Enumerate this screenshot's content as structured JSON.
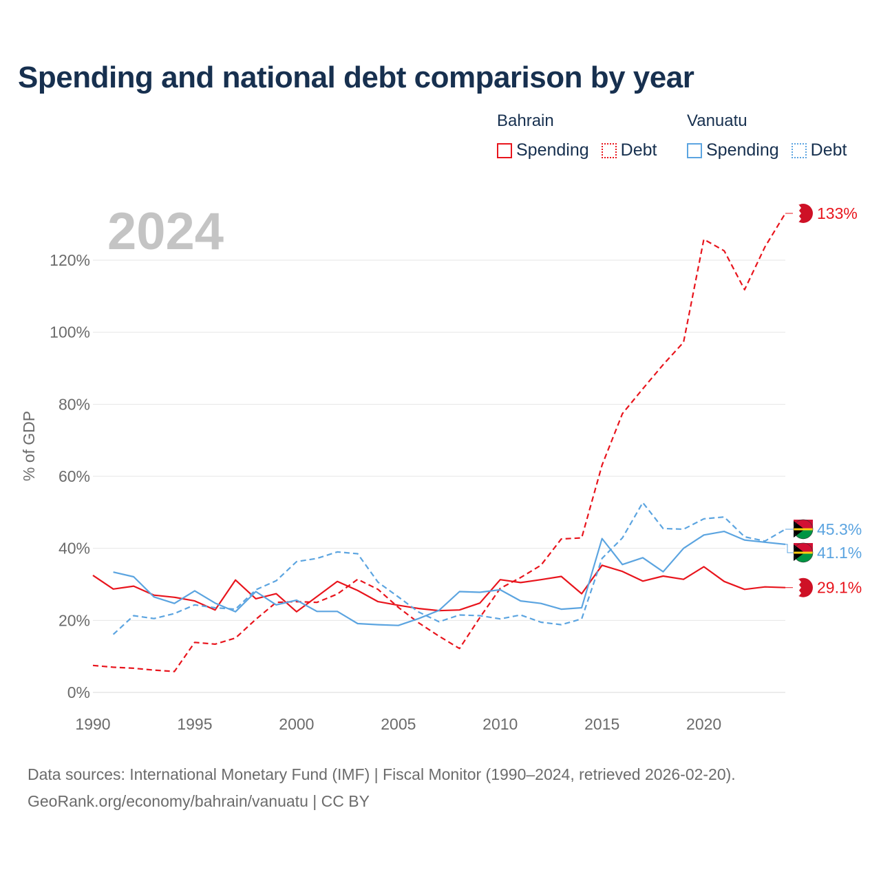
{
  "title": "Spending and national debt comparison by year",
  "year_label": "2024",
  "legend": [
    {
      "country": "Bahrain",
      "color": "#e8141c",
      "items": [
        "Spending",
        "Debt"
      ]
    },
    {
      "country": "Vanuatu",
      "color": "#5ba4e0",
      "items": [
        "Spending",
        "Debt"
      ]
    }
  ],
  "footer": {
    "source": "Data sources: International Monetary Fund (IMF) | Fiscal Monitor (1990–2024, retrieved 2026-02-20).",
    "url": "GeoRank.org/economy/bahrain/vanuatu | CC BY"
  },
  "chart_data": {
    "type": "line",
    "ylabel": "% of GDP",
    "xlim": [
      1990,
      2024
    ],
    "ylim": [
      0,
      133
    ],
    "yticks": [
      0,
      20,
      40,
      60,
      80,
      100,
      120
    ],
    "ytick_labels": [
      "0%",
      "20%",
      "40%",
      "60%",
      "80%",
      "100%",
      "120%"
    ],
    "xticks": [
      1990,
      1995,
      2000,
      2005,
      2010,
      2015,
      2020
    ],
    "xtick_labels": [
      "1990",
      "1995",
      "2000",
      "2005",
      "2010",
      "2015",
      "2020"
    ],
    "series": [
      {
        "name": "Bahrain Spending",
        "color": "#e8141c",
        "dash": false,
        "end_label": "29.1%",
        "x": [
          1990,
          1991,
          1992,
          1993,
          1994,
          1995,
          1996,
          1997,
          1998,
          1999,
          2000,
          2001,
          2002,
          2003,
          2004,
          2005,
          2006,
          2007,
          2008,
          2009,
          2010,
          2011,
          2012,
          2013,
          2014,
          2015,
          2016,
          2017,
          2018,
          2019,
          2020,
          2021,
          2022,
          2023,
          2024
        ],
        "values": [
          32.5,
          28.7,
          29.5,
          27.0,
          26.4,
          25.4,
          22.9,
          31.2,
          26.0,
          27.4,
          22.4,
          26.6,
          30.8,
          28.3,
          25.2,
          24.2,
          23.3,
          22.7,
          22.9,
          24.8,
          31.3,
          30.5,
          31.3,
          32.2,
          27.4,
          35.3,
          33.6,
          30.9,
          32.3,
          31.4,
          34.9,
          30.8,
          28.6,
          29.3,
          29.1
        ]
      },
      {
        "name": "Bahrain Debt",
        "color": "#e8141c",
        "dash": true,
        "end_label": "133%",
        "x": [
          1990,
          1991,
          1992,
          1993,
          1994,
          1995,
          1996,
          1997,
          1998,
          1999,
          2000,
          2001,
          2002,
          2003,
          2004,
          2005,
          2006,
          2007,
          2008,
          2009,
          2010,
          2011,
          2012,
          2013,
          2014,
          2015,
          2016,
          2017,
          2018,
          2019,
          2020,
          2021,
          2022,
          2023,
          2024
        ],
        "values": [
          7.5,
          7.0,
          6.7,
          6.2,
          5.8,
          13.9,
          13.4,
          15.1,
          20.3,
          25.0,
          25.2,
          25.0,
          27.3,
          31.4,
          28.6,
          23.6,
          19.3,
          15.6,
          12.2,
          20.8,
          28.9,
          31.9,
          35.3,
          42.6,
          42.9,
          63.1,
          77.4,
          84.3,
          91.0,
          97.2,
          125.8,
          122.6,
          111.8,
          123.7,
          133.0
        ]
      },
      {
        "name": "Vanuatu Spending",
        "color": "#5ba4e0",
        "dash": false,
        "end_label": "41.1%",
        "x": [
          1991,
          1992,
          1993,
          1994,
          1995,
          1996,
          1997,
          1998,
          1999,
          2000,
          2001,
          2002,
          2003,
          2004,
          2005,
          2006,
          2007,
          2008,
          2009,
          2010,
          2011,
          2012,
          2013,
          2014,
          2015,
          2016,
          2017,
          2018,
          2019,
          2020,
          2021,
          2022,
          2023,
          2024
        ],
        "values": [
          33.4,
          32.1,
          26.5,
          24.7,
          28.2,
          24.8,
          22.4,
          28.0,
          24.3,
          25.6,
          22.5,
          22.5,
          19.1,
          18.8,
          18.6,
          20.5,
          22.8,
          28.0,
          27.8,
          28.5,
          25.4,
          24.7,
          23.1,
          23.5,
          42.7,
          35.5,
          37.4,
          33.5,
          40.0,
          43.7,
          44.7,
          42.3,
          41.7,
          41.1
        ]
      },
      {
        "name": "Vanuatu Debt",
        "color": "#5ba4e0",
        "dash": true,
        "end_label": "45.3%",
        "x": [
          1991,
          1992,
          1993,
          1994,
          1995,
          1996,
          1997,
          1998,
          1999,
          2000,
          2001,
          2002,
          2003,
          2004,
          2005,
          2006,
          2007,
          2008,
          2009,
          2010,
          2011,
          2012,
          2013,
          2014,
          2015,
          2016,
          2017,
          2018,
          2019,
          2020,
          2021,
          2022,
          2023,
          2024
        ],
        "values": [
          16.1,
          21.3,
          20.5,
          21.9,
          24.3,
          23.5,
          23.1,
          28.5,
          31.0,
          36.3,
          37.2,
          39.0,
          38.5,
          30.6,
          26.5,
          22.3,
          19.6,
          21.5,
          21.3,
          20.4,
          21.5,
          19.5,
          18.8,
          20.4,
          37.2,
          42.9,
          52.7,
          45.5,
          45.3,
          48.2,
          48.7,
          43.2,
          42.0,
          45.3
        ]
      }
    ]
  }
}
